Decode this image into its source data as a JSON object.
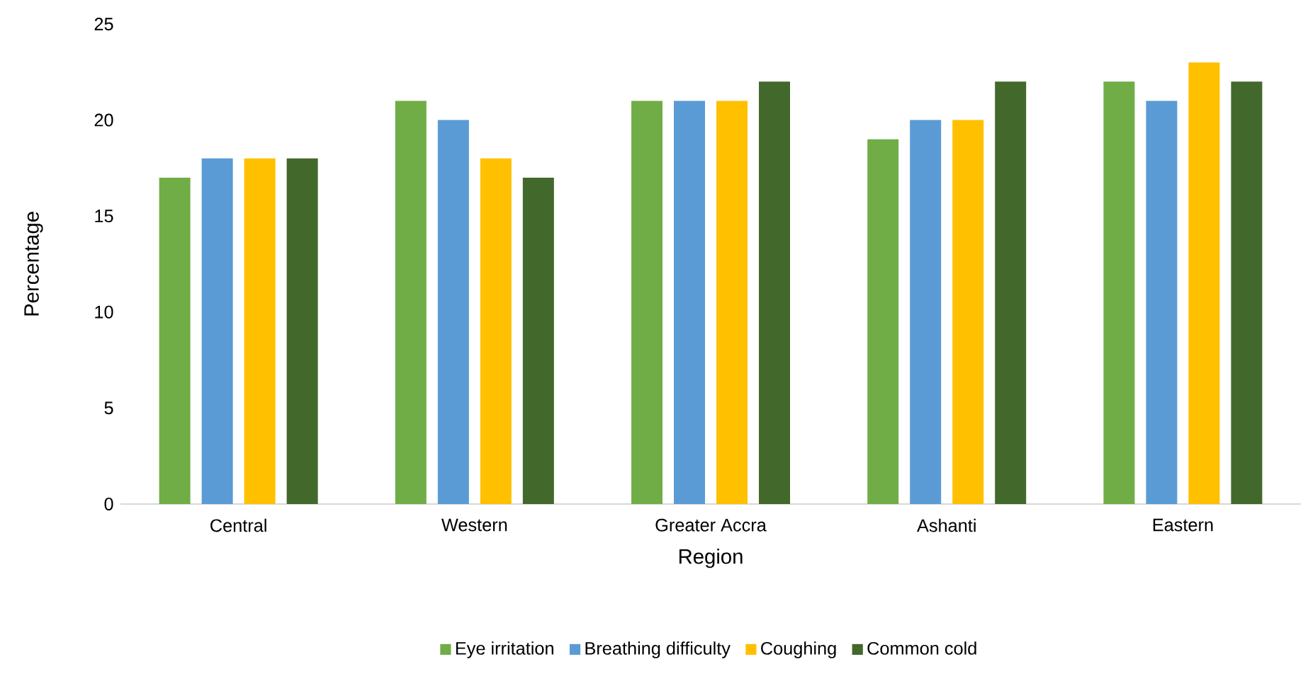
{
  "chart_data": {
    "type": "bar",
    "xlabel": "Region",
    "ylabel": "Percentage",
    "categories": [
      "Central",
      "Western",
      "Greater Accra",
      "Ashanti",
      "Eastern"
    ],
    "series": [
      {
        "name": "Eye irritation",
        "color": "#70ad47",
        "values": [
          17,
          21,
          21,
          19,
          22
        ]
      },
      {
        "name": "Breathing difficulty",
        "color": "#5b9bd5",
        "values": [
          18,
          20,
          21,
          20,
          21
        ]
      },
      {
        "name": "Coughing",
        "color": "#ffc000",
        "values": [
          18,
          18,
          21,
          20,
          23
        ]
      },
      {
        "name": "Common cold",
        "color": "#43682b",
        "values": [
          18,
          17,
          22,
          22,
          22
        ]
      }
    ],
    "ylim": [
      0,
      25
    ],
    "yticks": [
      0,
      5,
      10,
      15,
      20,
      25
    ],
    "grid": false,
    "legend": "bottom"
  }
}
